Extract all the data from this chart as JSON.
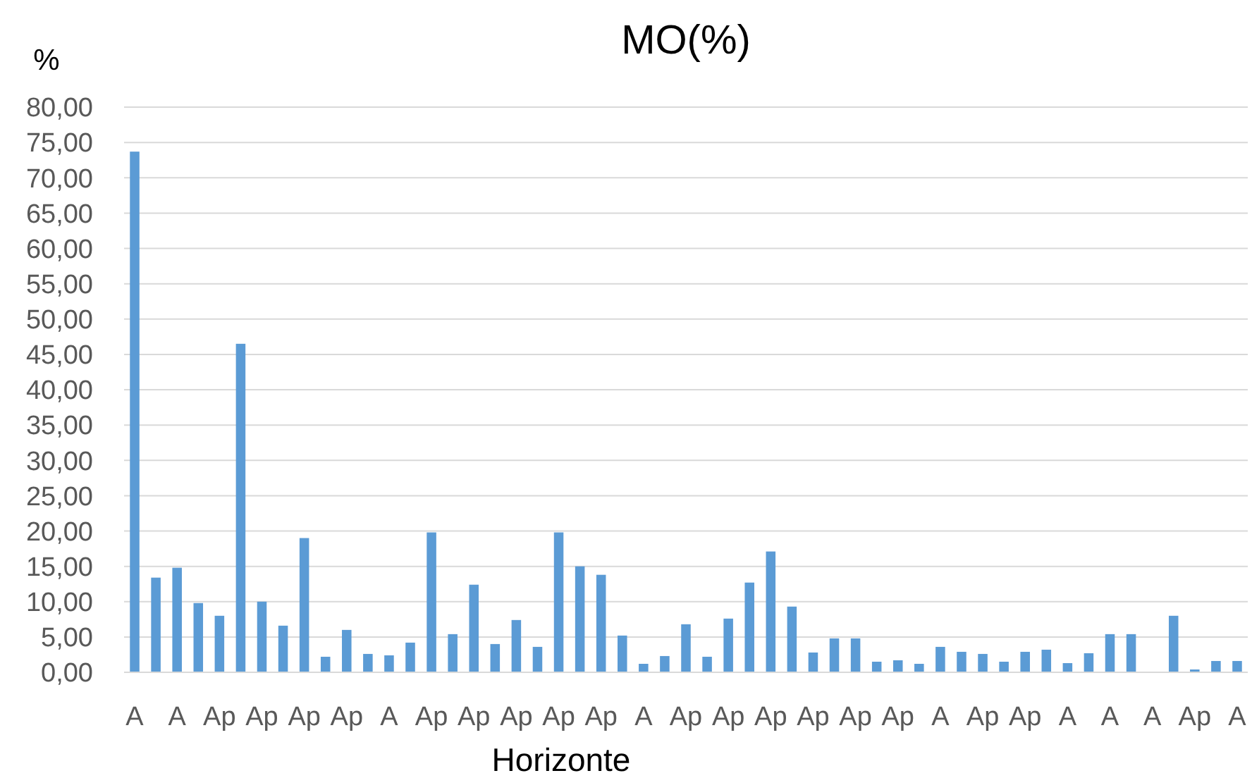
{
  "chart_data": {
    "type": "bar",
    "title": "MO(%)",
    "ylabel": "%",
    "xlabel": "Horizonte",
    "categories": [
      "A",
      null,
      "A",
      null,
      "Ap",
      null,
      "Ap",
      null,
      "Ap",
      null,
      "Ap",
      null,
      "A",
      null,
      "Ap",
      null,
      "Ap",
      null,
      "Ap",
      null,
      "Ap",
      null,
      "Ap",
      null,
      "A",
      null,
      "Ap",
      null,
      "Ap",
      null,
      "Ap",
      null,
      "Ap",
      null,
      "Ap",
      null,
      "Ap",
      null,
      "A",
      null,
      "Ap",
      null,
      "Ap",
      null,
      "A",
      null,
      "A",
      null,
      "A",
      null,
      "Ap",
      null,
      "A"
    ],
    "values": [
      73.7,
      13.4,
      14.8,
      9.8,
      8.0,
      46.5,
      10.0,
      6.6,
      19.0,
      2.2,
      6.0,
      2.6,
      2.4,
      4.2,
      19.8,
      5.4,
      12.4,
      4.0,
      7.4,
      3.6,
      19.8,
      15.0,
      13.8,
      5.2,
      1.2,
      2.3,
      6.8,
      2.2,
      7.6,
      12.7,
      17.1,
      9.3,
      2.8,
      4.8,
      4.8,
      1.5,
      1.7,
      1.2,
      3.6,
      2.9,
      2.6,
      1.5,
      2.9,
      3.2,
      1.3,
      2.7,
      5.4,
      5.4,
      null,
      8.0,
      0.4,
      1.6,
      1.6
    ],
    "color": "#5b9bd5",
    "ylim": [
      0,
      80
    ],
    "yticks": [
      {
        "value": 0,
        "label": "0,00"
      },
      {
        "value": 5,
        "label": "5,00"
      },
      {
        "value": 10,
        "label": "10,00"
      },
      {
        "value": 15,
        "label": "15,00"
      },
      {
        "value": 20,
        "label": "20,00"
      },
      {
        "value": 25,
        "label": "25,00"
      },
      {
        "value": 30,
        "label": "30,00"
      },
      {
        "value": 35,
        "label": "35,00"
      },
      {
        "value": 40,
        "label": "40,00"
      },
      {
        "value": 45,
        "label": "45,00"
      },
      {
        "value": 50,
        "label": "50,00"
      },
      {
        "value": 55,
        "label": "55,00"
      },
      {
        "value": 60,
        "label": "60,00"
      },
      {
        "value": 65,
        "label": "65,00"
      },
      {
        "value": 70,
        "label": "70,00"
      },
      {
        "value": 75,
        "label": "75,00"
      },
      {
        "value": 80,
        "label": "80,00"
      }
    ],
    "grid": "y"
  }
}
